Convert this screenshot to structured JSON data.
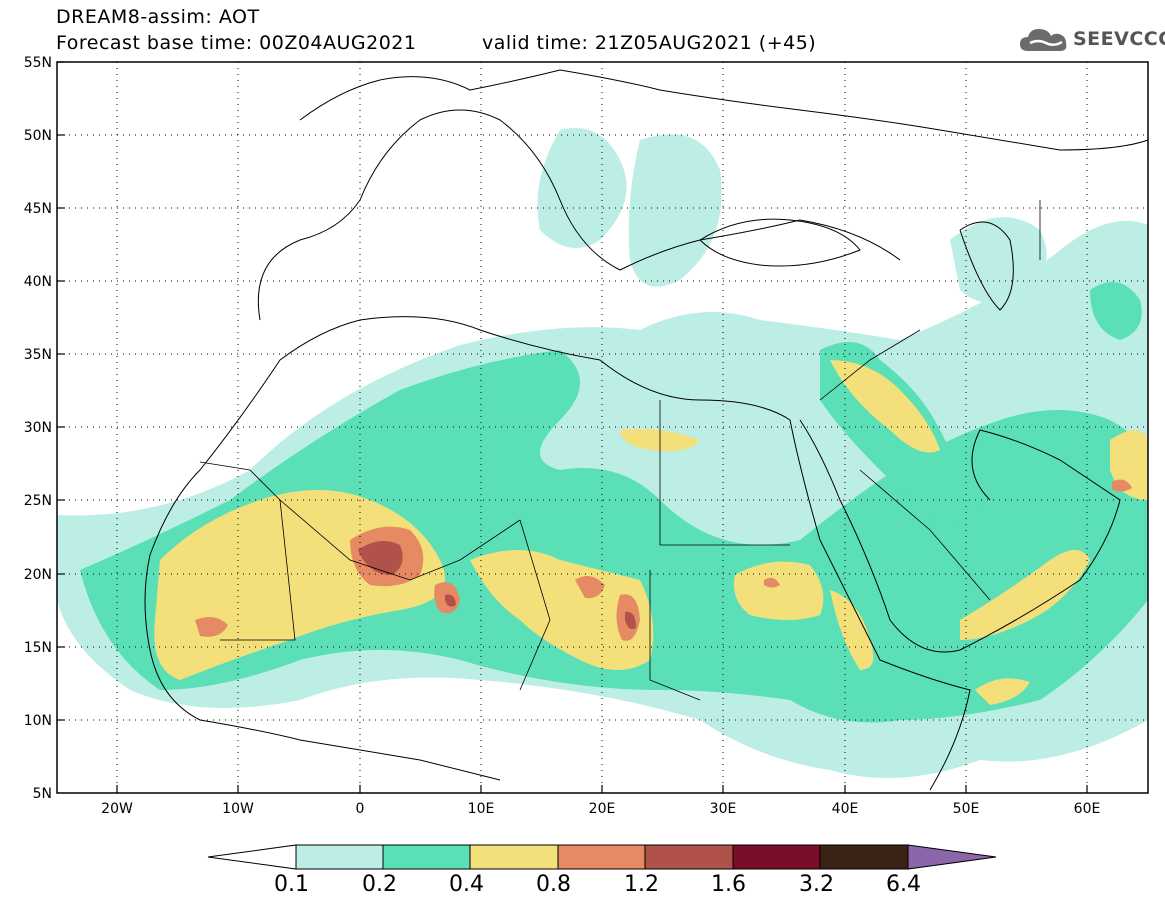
{
  "header": {
    "line1": "DREAM8-assim: AOT",
    "line2": "Forecast base time: 00Z04AUG2021",
    "line3": "valid time: 21Z05AUG2021 (+45)"
  },
  "logo": {
    "text": "SEEVCCC",
    "icon": "cloud-icon",
    "color": "#555555"
  },
  "map": {
    "lat_labels": [
      "55N",
      "50N",
      "45N",
      "40N",
      "35N",
      "30N",
      "25N",
      "20N",
      "15N",
      "10N",
      "5N"
    ],
    "lon_labels": [
      "20W",
      "10W",
      "0",
      "10E",
      "20E",
      "30E",
      "40E",
      "50E",
      "60E"
    ]
  },
  "colorbar": {
    "colors": [
      "#bdeee6",
      "#5bdfb7",
      "#f4e07b",
      "#e68a64",
      "#b0524a",
      "#7a0d2a",
      "#3a2314",
      "#8b66a8"
    ],
    "labels": [
      "0.1",
      "0.2",
      "0.4",
      "0.8",
      "1.2",
      "1.6",
      "3.2",
      "6.4"
    ]
  }
}
